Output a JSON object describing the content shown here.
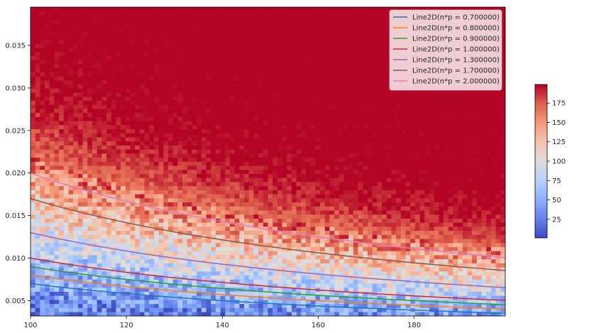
{
  "chart_data": {
    "type": "heatmap",
    "title": "",
    "xlabel": "",
    "ylabel": "",
    "xlim": [
      100,
      199
    ],
    "ylim": [
      0.0032,
      0.0395
    ],
    "x_ticks": [
      "100",
      "120",
      "140",
      "160",
      "180"
    ],
    "y_ticks": [
      "0.005",
      "0.010",
      "0.015",
      "0.020",
      "0.025",
      "0.030",
      "0.035"
    ],
    "colormap": "coolwarm",
    "colorbar": {
      "range": [
        1,
        199
      ],
      "ticks": [
        "25",
        "50",
        "75",
        "100",
        "125",
        "150",
        "175"
      ]
    },
    "legend_position": "upper right",
    "series": [
      {
        "name": "Line2D(n*p = 0.700000)",
        "color": "#1f77b4",
        "np": 0.7
      },
      {
        "name": "Line2D(n*p = 0.800000)",
        "color": "#ff7f0e",
        "np": 0.8
      },
      {
        "name": "Line2D(n*p = 0.900000)",
        "color": "#2ca02c",
        "np": 0.9
      },
      {
        "name": "Line2D(n*p = 1.000000)",
        "color": "#d62728",
        "np": 1.0
      },
      {
        "name": "Line2D(n*p = 1.300000)",
        "color": "#9467bd",
        "np": 1.3
      },
      {
        "name": "Line2D(n*p = 1.700000)",
        "color": "#8c564b",
        "np": 1.7
      },
      {
        "name": "Line2D(n*p = 2.000000)",
        "color": "#e377c2",
        "np": 2.0
      }
    ]
  }
}
